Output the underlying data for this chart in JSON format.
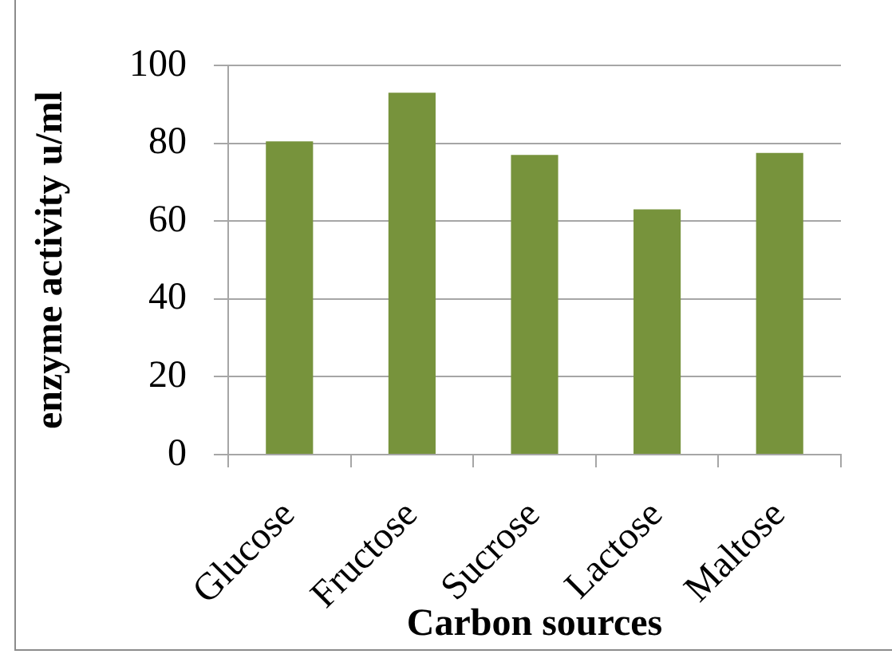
{
  "chart_data": {
    "type": "bar",
    "xlabel": "Carbon sources",
    "ylabel": "enzyme activity u/ml",
    "categories": [
      "Glucose",
      "Fructose",
      "Sucrose",
      "Lactose",
      "Maltose"
    ],
    "values": [
      80.5,
      93,
      77,
      63,
      77.5
    ],
    "color": "#77933c",
    "ylim": [
      0,
      100
    ],
    "yticks": [
      0,
      20,
      40,
      60,
      80,
      100
    ],
    "grid": "y"
  }
}
